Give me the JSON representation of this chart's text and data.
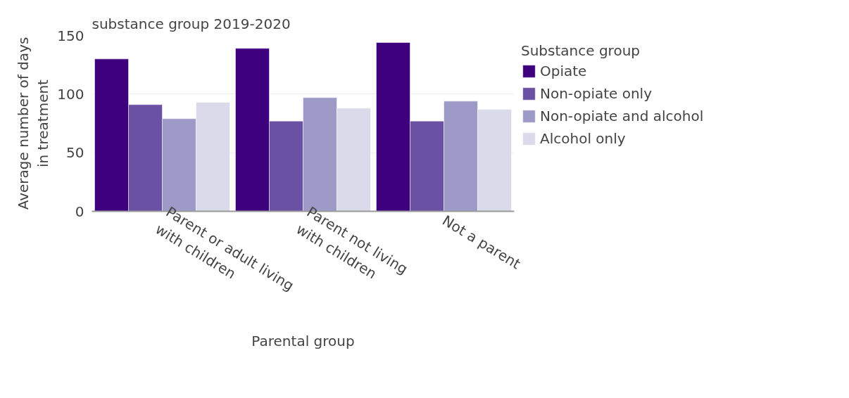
{
  "chart_data": {
    "type": "bar",
    "title": "substance group 2019-2020",
    "xlabel": "Parental group",
    "ylabel": "Average number of days in treatment",
    "legend_title": "Substance group",
    "categories": [
      "Parent or adult living\nwith children",
      "Parent not living\nwith children",
      "Not a parent"
    ],
    "series": [
      {
        "name": "Opiate",
        "color": "#3f007d",
        "values": [
          130,
          139,
          144
        ]
      },
      {
        "name": "Non-opiate only",
        "color": "#6a51a3",
        "values": [
          91,
          77,
          77
        ]
      },
      {
        "name": "Non-opiate and alcohol",
        "color": "#9e9ac8",
        "values": [
          79,
          97,
          94
        ]
      },
      {
        "name": "Alcohol only",
        "color": "#dadaeb",
        "values": [
          93,
          88,
          87
        ]
      }
    ],
    "ylim": [
      0,
      150
    ],
    "yticks": [
      0,
      50,
      100,
      150
    ],
    "grid": "y",
    "legend": "right"
  }
}
